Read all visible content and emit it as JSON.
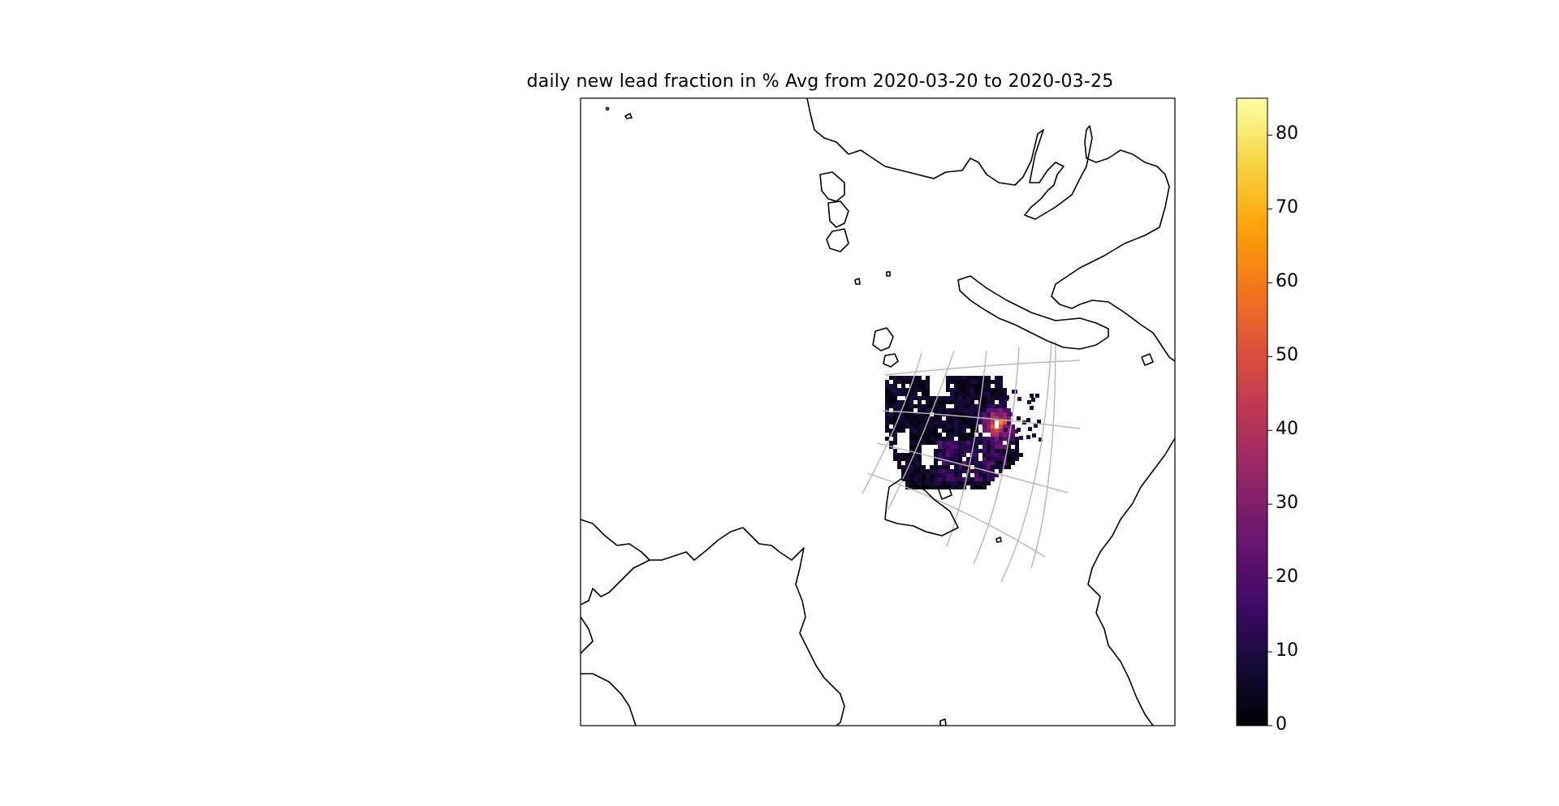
{
  "figure": {
    "title": "daily new lead fraction in % Avg from 2020-03-20 to 2020-03-25"
  },
  "colorbar": {
    "colormap": "inferno",
    "min": 0,
    "max": 85,
    "ticks": [
      "0",
      "10",
      "20",
      "30",
      "40",
      "50",
      "60",
      "70",
      "80"
    ]
  },
  "map": {
    "projection": "polar stereographic (North Pole)",
    "coastlines": true,
    "graticule": true,
    "data_region_colors": {
      "background": "#ffffff",
      "coast": "#000000",
      "grid": "#b5b5b5"
    }
  }
}
